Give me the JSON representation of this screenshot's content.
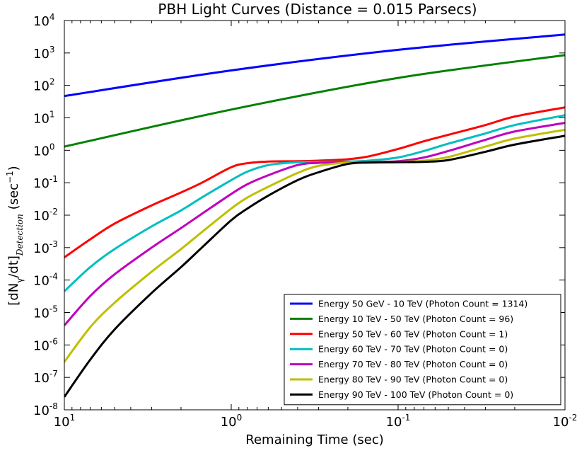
{
  "chart_data": {
    "type": "line",
    "title": "PBH Light Curves (Distance = 0.015 Parsecs)",
    "xlabel": "Remaining Time (sec)",
    "ylabel_main": "[dN",
    "ylabel_sub1": "γ",
    "ylabel_mid": "/dt]",
    "ylabel_sub2": "Detection",
    "ylabel_unit": " (sec",
    "ylabel_unit_exp": "−1",
    "ylabel_close": ")",
    "x_scale": "log",
    "x_inverted": true,
    "xlim": [
      10,
      0.01
    ],
    "y_scale": "log",
    "ylim": [
      1e-08,
      10000
    ],
    "x_ticks": [
      {
        "base": "10",
        "exp": "1",
        "value": 10
      },
      {
        "base": "10",
        "exp": "0",
        "value": 1
      },
      {
        "base": "10",
        "exp": "-1",
        "value": 0.1
      },
      {
        "base": "10",
        "exp": "-2",
        "value": 0.01
      }
    ],
    "y_ticks": [
      {
        "base": "10",
        "exp": "4",
        "value": 10000
      },
      {
        "base": "10",
        "exp": "3",
        "value": 1000
      },
      {
        "base": "10",
        "exp": "2",
        "value": 100
      },
      {
        "base": "10",
        "exp": "1",
        "value": 10
      },
      {
        "base": "10",
        "exp": "0",
        "value": 1
      },
      {
        "base": "10",
        "exp": "-1",
        "value": 0.1
      },
      {
        "base": "10",
        "exp": "-2",
        "value": 0.01
      },
      {
        "base": "10",
        "exp": "-3",
        "value": 0.001
      },
      {
        "base": "10",
        "exp": "-4",
        "value": 0.0001
      },
      {
        "base": "10",
        "exp": "-5",
        "value": 1e-05
      },
      {
        "base": "10",
        "exp": "-6",
        "value": 1e-06
      },
      {
        "base": "10",
        "exp": "-7",
        "value": 1e-07
      },
      {
        "base": "10",
        "exp": "-8",
        "value": 1e-08
      }
    ],
    "legend_position": "lower-right",
    "series": [
      {
        "name": "Energy 50 GeV - 10 TeV (Photon Count = 1314)",
        "color": "#0000ff",
        "x": [
          10,
          1,
          0.1,
          0.01
        ],
        "y": [
          47,
          290,
          1250,
          3700
        ]
      },
      {
        "name": "Energy 10 TeV - 50 TeV (Photon Count = 96)",
        "color": "#008000",
        "x": [
          10,
          1,
          0.1,
          0.01
        ],
        "y": [
          1.3,
          18,
          170,
          860
        ]
      },
      {
        "name": "Energy 50 TeV - 60 TeV (Photon Count = 1)",
        "color": "#ff0000",
        "x": [
          10,
          7,
          5,
          3,
          2,
          1.5,
          1,
          0.8,
          0.6,
          0.4,
          0.3,
          0.2,
          0.15,
          0.1,
          0.07,
          0.05,
          0.03,
          0.02,
          0.01
        ],
        "y": [
          0.0005,
          0.0018,
          0.0055,
          0.02,
          0.05,
          0.1,
          0.3,
          0.4,
          0.45,
          0.46,
          0.48,
          0.53,
          0.65,
          1.1,
          1.9,
          3,
          6,
          11,
          21
        ]
      },
      {
        "name": "Energy 60 TeV - 70 TeV (Photon Count = 0)",
        "color": "#00bfbf",
        "x": [
          10,
          7,
          5,
          3,
          2,
          1.5,
          1,
          0.8,
          0.6,
          0.4,
          0.3,
          0.2,
          0.15,
          0.1,
          0.07,
          0.05,
          0.03,
          0.02,
          0.01
        ],
        "y": [
          4.5e-05,
          0.00025,
          0.0009,
          0.0045,
          0.014,
          0.035,
          0.12,
          0.22,
          0.35,
          0.43,
          0.44,
          0.45,
          0.48,
          0.6,
          0.95,
          1.6,
          3.3,
          6,
          12
        ]
      },
      {
        "name": "Energy 70 TeV - 80 TeV (Photon Count = 0)",
        "color": "#bf00bf",
        "x": [
          10,
          7,
          5,
          3,
          2,
          1.5,
          1,
          0.8,
          0.6,
          0.4,
          0.3,
          0.2,
          0.15,
          0.1,
          0.07,
          0.05,
          0.03,
          0.02,
          0.01
        ],
        "y": [
          4e-06,
          3.2e-05,
          0.00015,
          0.001,
          0.004,
          0.011,
          0.045,
          0.09,
          0.17,
          0.35,
          0.41,
          0.43,
          0.44,
          0.46,
          0.6,
          0.95,
          2.1,
          3.8,
          7
        ]
      },
      {
        "name": "Energy 80 TeV - 90 TeV (Photon Count = 0)",
        "color": "#bfbf00",
        "x": [
          10,
          7,
          5,
          3,
          2,
          1.5,
          1,
          0.8,
          0.6,
          0.4,
          0.3,
          0.2,
          0.15,
          0.1,
          0.07,
          0.05,
          0.03,
          0.02,
          0.01
        ],
        "y": [
          3e-07,
          3.5e-06,
          2e-05,
          0.00018,
          0.0009,
          0.003,
          0.016,
          0.035,
          0.075,
          0.2,
          0.33,
          0.42,
          0.43,
          0.44,
          0.48,
          0.62,
          1.3,
          2.3,
          4.3
        ]
      },
      {
        "name": "Energy 90 TeV - 100 TeV (Photon Count = 0)",
        "color": "#000000",
        "x": [
          10,
          7,
          5,
          3,
          2,
          1.5,
          1,
          0.8,
          0.6,
          0.4,
          0.3,
          0.2,
          0.15,
          0.1,
          0.07,
          0.05,
          0.03,
          0.02,
          0.01
        ],
        "y": [
          2.5e-08,
          3.5e-07,
          3e-06,
          4e-05,
          0.00025,
          0.001,
          0.007,
          0.016,
          0.04,
          0.12,
          0.21,
          0.38,
          0.42,
          0.43,
          0.44,
          0.5,
          0.9,
          1.5,
          2.8
        ]
      }
    ]
  }
}
